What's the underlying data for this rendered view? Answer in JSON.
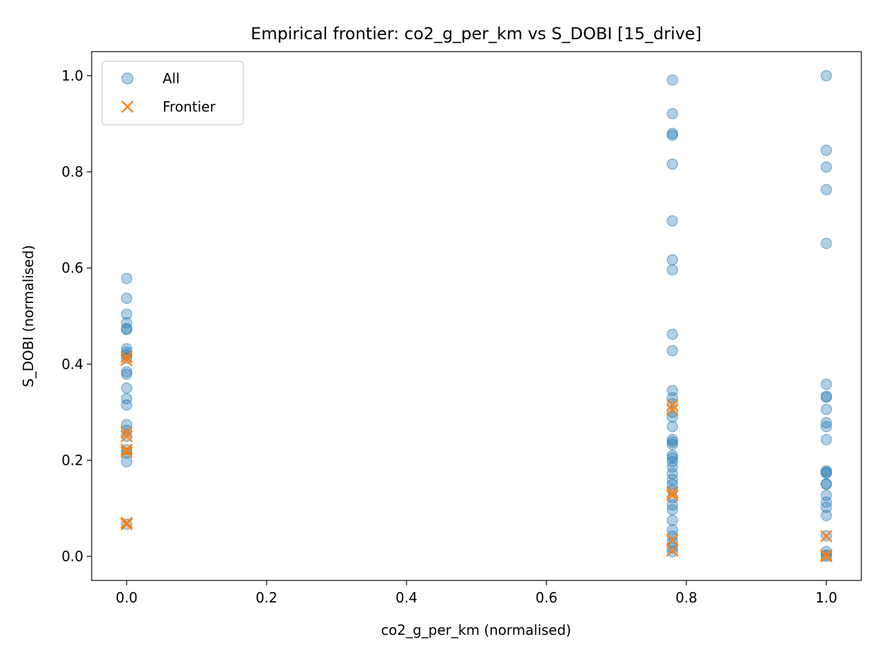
{
  "chart_data": {
    "type": "scatter",
    "title": "Empirical frontier: co2_g_per_km vs S_DOBI [15_drive]",
    "xlabel": "co2_g_per_km (normalised)",
    "ylabel": "S_DOBI (normalised)",
    "xlim": [
      -0.05,
      1.05
    ],
    "ylim": [
      -0.05,
      1.05
    ],
    "xticks": [
      "0.0",
      "0.2",
      "0.4",
      "0.6",
      "0.8",
      "1.0"
    ],
    "yticks": [
      "0.0",
      "0.2",
      "0.4",
      "0.6",
      "0.8",
      "1.0"
    ],
    "grid": false,
    "legend_position": "upper-left",
    "colors": {
      "all": "#1f77b4",
      "frontier": "#ff7f0e"
    },
    "series": [
      {
        "name": "All",
        "marker": "circle",
        "points": [
          [
            0.0,
            0.578
          ],
          [
            0.0,
            0.537
          ],
          [
            0.0,
            0.504
          ],
          [
            0.0,
            0.486
          ],
          [
            0.0,
            0.474
          ],
          [
            0.0,
            0.472
          ],
          [
            0.0,
            0.432
          ],
          [
            0.0,
            0.425
          ],
          [
            0.0,
            0.419
          ],
          [
            0.0,
            0.412
          ],
          [
            0.0,
            0.384
          ],
          [
            0.0,
            0.379
          ],
          [
            0.0,
            0.35
          ],
          [
            0.0,
            0.328
          ],
          [
            0.0,
            0.315
          ],
          [
            0.0,
            0.274
          ],
          [
            0.0,
            0.262
          ],
          [
            0.0,
            0.25
          ],
          [
            0.0,
            0.222
          ],
          [
            0.0,
            0.215
          ],
          [
            0.0,
            0.197
          ],
          [
            0.0,
            0.067
          ],
          [
            0.78,
            0.991
          ],
          [
            0.78,
            0.921
          ],
          [
            0.78,
            0.88
          ],
          [
            0.78,
            0.876
          ],
          [
            0.78,
            0.816
          ],
          [
            0.78,
            0.698
          ],
          [
            0.78,
            0.617
          ],
          [
            0.78,
            0.596
          ],
          [
            0.78,
            0.462
          ],
          [
            0.78,
            0.428
          ],
          [
            0.78,
            0.345
          ],
          [
            0.78,
            0.33
          ],
          [
            0.78,
            0.318
          ],
          [
            0.78,
            0.3
          ],
          [
            0.78,
            0.29
          ],
          [
            0.78,
            0.27
          ],
          [
            0.78,
            0.243
          ],
          [
            0.78,
            0.238
          ],
          [
            0.78,
            0.233
          ],
          [
            0.78,
            0.21
          ],
          [
            0.78,
            0.205
          ],
          [
            0.78,
            0.197
          ],
          [
            0.78,
            0.186
          ],
          [
            0.78,
            0.172
          ],
          [
            0.78,
            0.16
          ],
          [
            0.78,
            0.15
          ],
          [
            0.78,
            0.138
          ],
          [
            0.78,
            0.122
          ],
          [
            0.78,
            0.107
          ],
          [
            0.78,
            0.097
          ],
          [
            0.78,
            0.075
          ],
          [
            0.78,
            0.055
          ],
          [
            0.78,
            0.042
          ],
          [
            0.78,
            0.03
          ],
          [
            0.78,
            0.018
          ],
          [
            0.78,
            0.01
          ],
          [
            1.0,
            1.0
          ],
          [
            1.0,
            0.845
          ],
          [
            1.0,
            0.81
          ],
          [
            1.0,
            0.763
          ],
          [
            1.0,
            0.651
          ],
          [
            1.0,
            0.358
          ],
          [
            1.0,
            0.333
          ],
          [
            1.0,
            0.331
          ],
          [
            1.0,
            0.306
          ],
          [
            1.0,
            0.278
          ],
          [
            1.0,
            0.27
          ],
          [
            1.0,
            0.243
          ],
          [
            1.0,
            0.178
          ],
          [
            1.0,
            0.175
          ],
          [
            1.0,
            0.173
          ],
          [
            1.0,
            0.151
          ],
          [
            1.0,
            0.15
          ],
          [
            1.0,
            0.127
          ],
          [
            1.0,
            0.113
          ],
          [
            1.0,
            0.102
          ],
          [
            1.0,
            0.085
          ],
          [
            1.0,
            0.043
          ],
          [
            1.0,
            0.01
          ],
          [
            1.0,
            0.003
          ],
          [
            1.0,
            0.0
          ]
        ]
      },
      {
        "name": "Frontier",
        "marker": "x",
        "points": [
          [
            0.0,
            0.415
          ],
          [
            0.0,
            0.408
          ],
          [
            0.0,
            0.258
          ],
          [
            0.0,
            0.25
          ],
          [
            0.0,
            0.222
          ],
          [
            0.0,
            0.217
          ],
          [
            0.0,
            0.07
          ],
          [
            0.0,
            0.067
          ],
          [
            0.78,
            0.315
          ],
          [
            0.78,
            0.305
          ],
          [
            0.78,
            0.133
          ],
          [
            0.78,
            0.127
          ],
          [
            0.78,
            0.035
          ],
          [
            0.78,
            0.012
          ],
          [
            1.0,
            0.042
          ],
          [
            1.0,
            0.003
          ],
          [
            1.0,
            0.0
          ]
        ]
      }
    ]
  }
}
